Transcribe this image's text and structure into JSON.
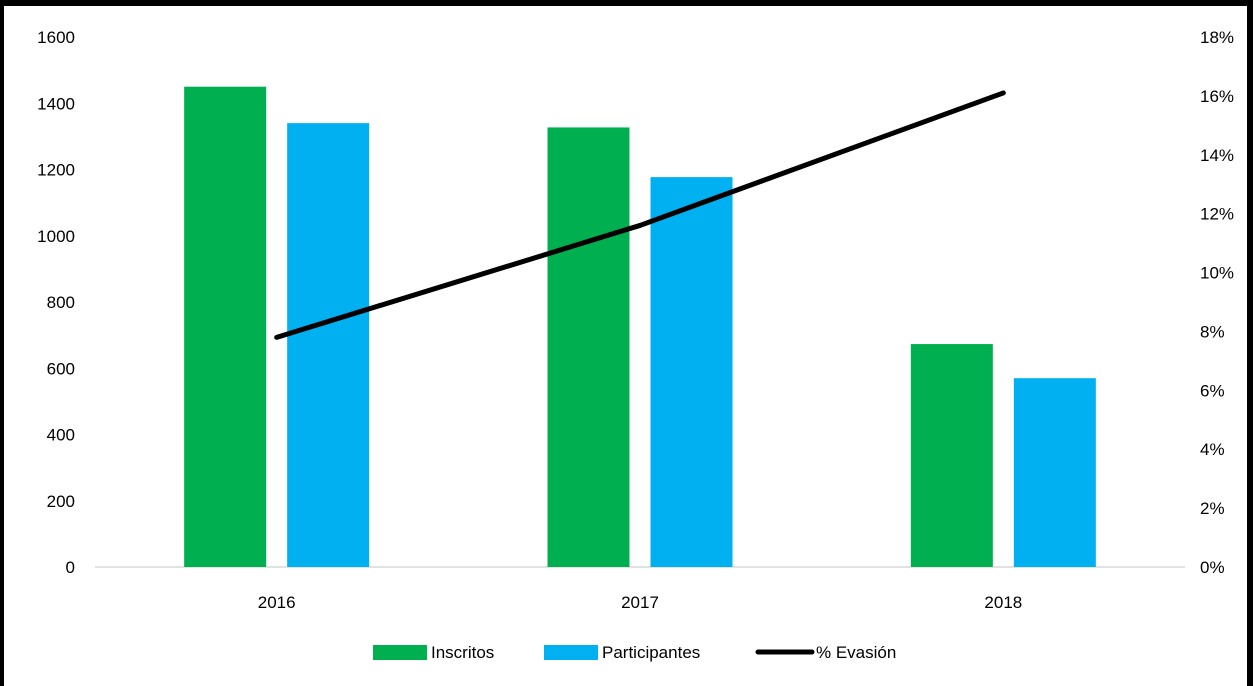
{
  "chart_data": {
    "type": "bar",
    "categories": [
      "2016",
      "2017",
      "2018"
    ],
    "series": [
      {
        "name": "Inscritos",
        "type": "bar",
        "axis": "left",
        "color": "#00b050",
        "values": [
          1450,
          1327,
          673
        ]
      },
      {
        "name": "Participantes",
        "type": "bar",
        "axis": "left",
        "color": "#00b0f0",
        "values": [
          1340,
          1177,
          570
        ]
      },
      {
        "name": "% Evasión",
        "type": "line",
        "axis": "right",
        "color": "#000000",
        "values": [
          0.078,
          0.116,
          0.161
        ]
      }
    ],
    "y_left": {
      "min": 0,
      "max": 1600,
      "ticks": [
        "0",
        "200",
        "400",
        "600",
        "800",
        "1000",
        "1200",
        "1400",
        "1600"
      ]
    },
    "y_right": {
      "min": 0,
      "max": 0.18,
      "ticks": [
        "0%",
        "2%",
        "4%",
        "6%",
        "8%",
        "10%",
        "12%",
        "14%",
        "16%",
        "18%"
      ]
    },
    "grid": false,
    "legend": "bottom",
    "title": "",
    "xlabel": "",
    "ylabel": ""
  }
}
